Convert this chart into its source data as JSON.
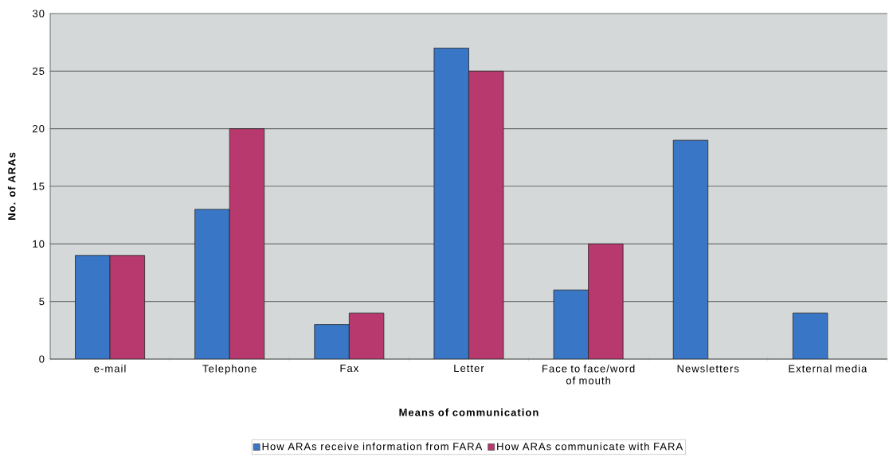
{
  "chart_data": {
    "type": "bar",
    "xlabel": "Means of communication",
    "ylabel": "No. of ARAs",
    "categories": [
      "e-mail",
      "Telephone",
      "Fax",
      "Letter",
      "Face to face/word of mouth",
      "Newsletters",
      "External media"
    ],
    "series": [
      {
        "name": "How ARAs receive information from FARA",
        "color": "#3a76c6",
        "values": [
          9,
          13,
          3,
          27,
          6,
          19,
          4
        ]
      },
      {
        "name": "How ARAs communicate with FARA",
        "color": "#b7396e",
        "values": [
          9,
          20,
          4,
          25,
          10,
          null,
          null
        ]
      }
    ],
    "ylim": [
      0,
      30
    ],
    "yticks": [
      0,
      5,
      10,
      15,
      20,
      25,
      30
    ],
    "grid": "y",
    "legend": "bottom"
  }
}
